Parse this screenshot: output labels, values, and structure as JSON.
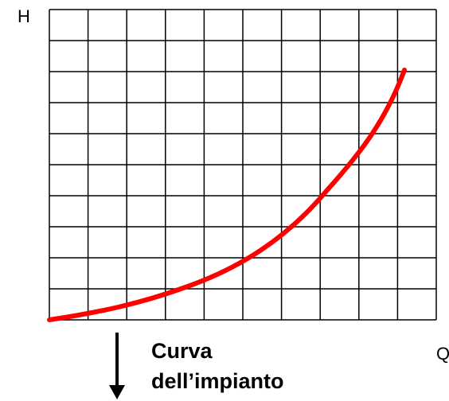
{
  "axes": {
    "y_label": "H",
    "x_label": "Q"
  },
  "caption": {
    "line1": "Curva",
    "line2": "dell’impianto"
  }
}
